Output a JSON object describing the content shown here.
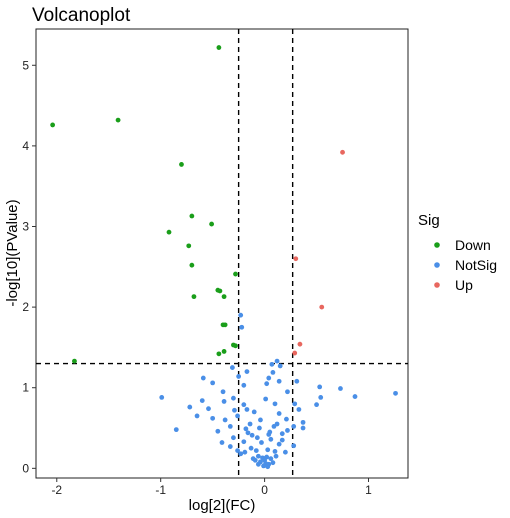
{
  "chart_data": {
    "type": "scatter",
    "title": "Volcanoplot",
    "xlabel": "log[2](FC)",
    "ylabel": "-log[10](PValue)",
    "xlim": [
      -2.2,
      1.38
    ],
    "ylim": [
      -0.12,
      5.45
    ],
    "x_ticks": [
      -2,
      -1,
      0,
      1
    ],
    "x_tick_labels": [
      "-2",
      "-1",
      "0",
      "1"
    ],
    "y_ticks": [
      0,
      1,
      2,
      3,
      4,
      5
    ],
    "y_tick_labels": [
      "0",
      "1",
      "2",
      "3",
      "4",
      "5"
    ],
    "grid": false,
    "legend": {
      "title": "Sig",
      "position": "right"
    },
    "thresholds": {
      "x": [
        -0.25,
        0.27
      ],
      "y": 1.3
    },
    "series": [
      {
        "name": "Down",
        "color": "#1a9e1a",
        "points": [
          [
            -2.04,
            4.26
          ],
          [
            -1.41,
            4.32
          ],
          [
            -0.44,
            5.22
          ],
          [
            -0.8,
            3.77
          ],
          [
            -0.7,
            3.13
          ],
          [
            -0.92,
            2.93
          ],
          [
            -0.51,
            3.03
          ],
          [
            -0.73,
            2.76
          ],
          [
            -0.7,
            2.52
          ],
          [
            -0.28,
            2.41
          ],
          [
            -0.45,
            2.21
          ],
          [
            -0.43,
            2.2
          ],
          [
            -0.68,
            2.13
          ],
          [
            -0.39,
            2.13
          ],
          [
            -0.4,
            1.78
          ],
          [
            -0.38,
            1.78
          ],
          [
            -0.3,
            1.53
          ],
          [
            -0.28,
            1.52
          ],
          [
            -0.39,
            1.45
          ],
          [
            -0.44,
            1.42
          ],
          [
            -1.83,
            1.33
          ]
        ]
      },
      {
        "name": "NotSig",
        "color": "#4a8fe7",
        "points": [
          [
            -0.23,
            1.9
          ],
          [
            -0.22,
            1.75
          ],
          [
            0.12,
            1.33
          ],
          [
            0.07,
            1.29
          ],
          [
            0.15,
            1.27
          ],
          [
            -0.31,
            1.25
          ],
          [
            -0.17,
            1.2
          ],
          [
            -0.25,
            1.14
          ],
          [
            0.08,
            1.19
          ],
          [
            0.04,
            1.12
          ],
          [
            -0.59,
            1.12
          ],
          [
            -0.5,
            1.06
          ],
          [
            0.02,
            1.05
          ],
          [
            0.14,
            1.08
          ],
          [
            0.31,
            1.08
          ],
          [
            -0.2,
            1.03
          ],
          [
            0.53,
            1.01
          ],
          [
            0.73,
            0.99
          ],
          [
            0.87,
            0.89
          ],
          [
            1.26,
            0.93
          ],
          [
            -0.99,
            0.88
          ],
          [
            0.54,
            0.88
          ],
          [
            -0.6,
            0.84
          ],
          [
            -0.39,
            0.83
          ],
          [
            -0.3,
            0.87
          ],
          [
            -0.2,
            0.79
          ],
          [
            -0.17,
            0.73
          ],
          [
            0.01,
            0.86
          ],
          [
            0.1,
            0.8
          ],
          [
            0.29,
            0.8
          ],
          [
            0.33,
            0.73
          ],
          [
            0.5,
            0.79
          ],
          [
            -0.72,
            0.76
          ],
          [
            -0.54,
            0.74
          ],
          [
            -0.29,
            0.72
          ],
          [
            -0.26,
            0.65
          ],
          [
            -0.38,
            0.6
          ],
          [
            -0.1,
            0.7
          ],
          [
            -0.04,
            0.6
          ],
          [
            0.14,
            0.68
          ],
          [
            0.21,
            0.61
          ],
          [
            -0.65,
            0.65
          ],
          [
            -0.14,
            0.55
          ],
          [
            -0.18,
            0.49
          ],
          [
            0.09,
            0.52
          ],
          [
            0.12,
            0.55
          ],
          [
            0.28,
            0.52
          ],
          [
            0.37,
            0.57
          ],
          [
            -0.33,
            0.52
          ],
          [
            -0.16,
            0.44
          ],
          [
            -0.12,
            0.41
          ],
          [
            0.04,
            0.42
          ],
          [
            0.17,
            0.43
          ],
          [
            0.22,
            0.47
          ],
          [
            0.37,
            0.5
          ],
          [
            -0.85,
            0.48
          ],
          [
            -0.45,
            0.46
          ],
          [
            -0.3,
            0.38
          ],
          [
            -0.2,
            0.33
          ],
          [
            -0.07,
            0.38
          ],
          [
            -0.03,
            0.32
          ],
          [
            0.06,
            0.36
          ],
          [
            0.14,
            0.3
          ],
          [
            -0.41,
            0.32
          ],
          [
            -0.33,
            0.27
          ],
          [
            -0.13,
            0.25
          ],
          [
            -0.08,
            0.22
          ],
          [
            0.03,
            0.23
          ],
          [
            0.1,
            0.21
          ],
          [
            -0.19,
            0.2
          ],
          [
            -0.23,
            0.18
          ],
          [
            0.17,
            0.35
          ],
          [
            -0.06,
            0.15
          ],
          [
            -0.02,
            0.13
          ],
          [
            0.02,
            0.14
          ],
          [
            0.06,
            0.12
          ],
          [
            -0.09,
            0.1
          ],
          [
            -0.04,
            0.08
          ],
          [
            0.01,
            0.06
          ],
          [
            0.04,
            0.05
          ],
          [
            -0.01,
            0.03
          ],
          [
            0.03,
            0.02
          ],
          [
            0.0,
            0.1
          ],
          [
            -0.06,
            0.05
          ],
          [
            0.08,
            0.07
          ],
          [
            -0.11,
            0.12
          ],
          [
            0.11,
            0.15
          ],
          [
            0.2,
            0.2
          ],
          [
            -0.26,
            0.22
          ],
          [
            0.28,
            0.28
          ],
          [
            -0.5,
            0.62
          ],
          [
            0.22,
            0.95
          ],
          [
            -0.4,
            0.95
          ],
          [
            0.05,
            0.45
          ],
          [
            -0.05,
            0.5
          ]
        ]
      },
      {
        "name": "Up",
        "color": "#e8675f",
        "points": [
          [
            0.75,
            3.92
          ],
          [
            0.3,
            2.6
          ],
          [
            0.55,
            2.0
          ],
          [
            0.34,
            1.54
          ],
          [
            0.29,
            1.43
          ]
        ]
      }
    ]
  }
}
